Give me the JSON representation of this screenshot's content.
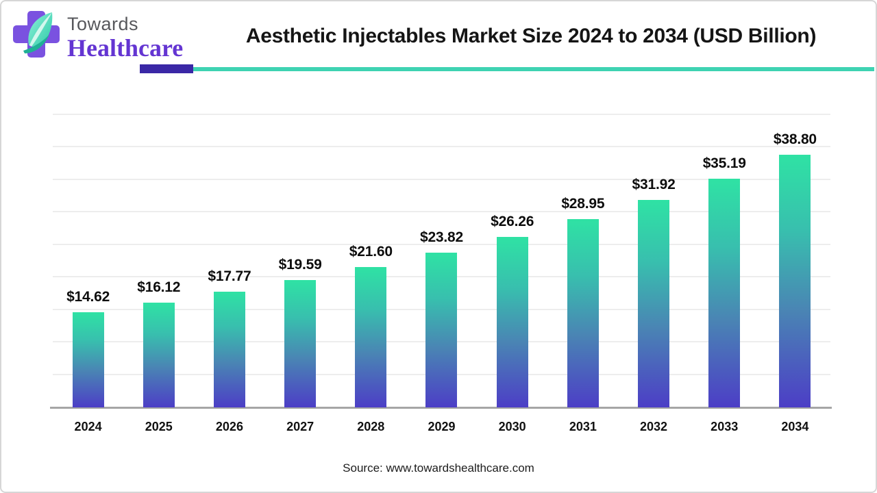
{
  "logo": {
    "line1": "Towards",
    "line2": "Healthcare"
  },
  "header": {
    "title": "Aesthetic Injectables Market Size 2024 to 2034 (USD Billion)"
  },
  "footer": {
    "source": "Source: www.towardshealthcare.com"
  },
  "colors": {
    "bar_gradient_top": "#2fe2a4",
    "bar_gradient_bottom": "#4c3ec6",
    "rule_purple": "#3a28a6",
    "rule_teal": "#3ed3b2",
    "logo_purple": "#7a52e0",
    "logo_leaf": "#45dcb6",
    "gridline": "#ededed",
    "axis": "#a6a6a6"
  },
  "chart_data": {
    "type": "bar",
    "title": "Aesthetic Injectables Market Size 2024 to 2034 (USD Billion)",
    "categories": [
      "2024",
      "2025",
      "2026",
      "2027",
      "2028",
      "2029",
      "2030",
      "2031",
      "2032",
      "2033",
      "2034"
    ],
    "values": [
      14.62,
      16.12,
      17.77,
      19.59,
      21.6,
      23.82,
      26.26,
      28.95,
      31.92,
      35.19,
      38.8
    ],
    "value_labels": [
      "$14.62",
      "$16.12",
      "$17.77",
      "$19.59",
      "$21.60",
      "$23.82",
      "$26.26",
      "$28.95",
      "$31.92",
      "$35.19",
      "$38.80"
    ],
    "unit": "USD Billion",
    "xlabel": "",
    "ylabel": "",
    "ylim": [
      0,
      45
    ],
    "gridline_step": 5,
    "grid": true,
    "legend": false
  }
}
